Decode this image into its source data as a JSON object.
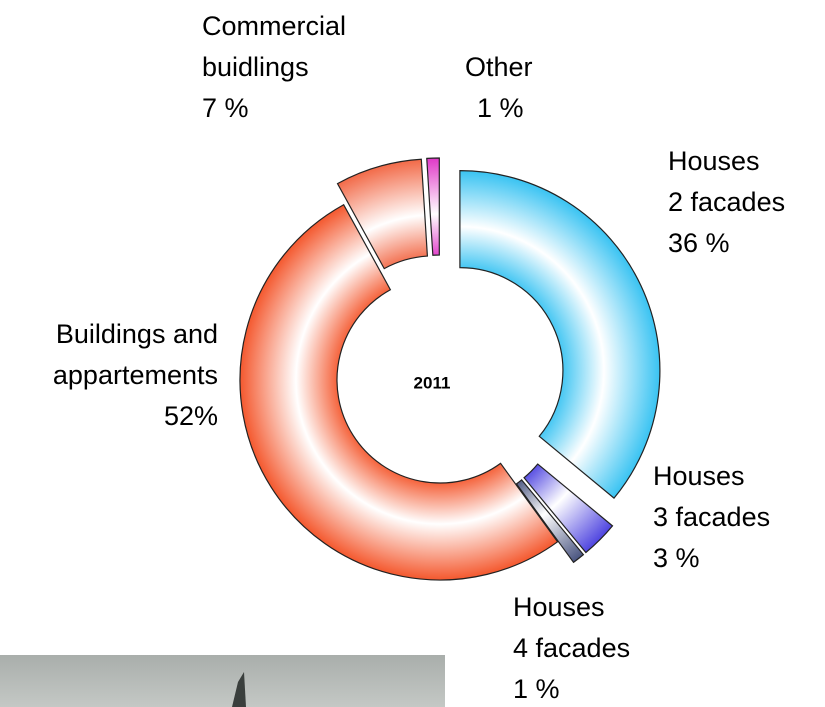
{
  "chart_data": {
    "type": "donut",
    "center_label": "2011",
    "categories": [
      [
        "Houses",
        "2 facades"
      ],
      [
        "Houses",
        "3 facades"
      ],
      [
        "Houses",
        "4 facades"
      ],
      [
        "Buildings and",
        "appartements"
      ],
      [
        "Commercial",
        "buidlings"
      ],
      [
        "Other"
      ]
    ],
    "values": [
      36,
      3,
      1,
      52,
      7,
      1
    ],
    "value_labels": [
      "36 %",
      "3 %",
      "1 %",
      "52%",
      "7 %",
      "1 %"
    ],
    "colors": [
      "#39c3f2",
      "#4f45e0",
      "#4a5580",
      "#f4582e",
      "#f26a48",
      "#e038c8"
    ]
  }
}
